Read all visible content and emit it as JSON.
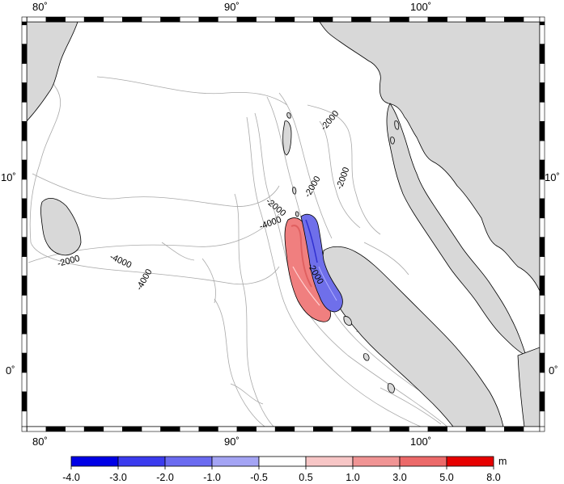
{
  "axes": {
    "lon_labels": [
      "80˚",
      "90˚",
      "100˚"
    ],
    "lat_labels": [
      "10˚",
      "0˚"
    ]
  },
  "contour_labels": [
    "-2000",
    "-4000",
    "-4000",
    "-2000",
    "-4000",
    "-2000",
    "-2000",
    "-2000",
    "-2000"
  ],
  "colorbar": {
    "unit": "m",
    "ticks": [
      "-4.0",
      "-3.0",
      "-2.0",
      "-1.0",
      "-0.5",
      "0.5",
      "1.0",
      "3.0",
      "5.0",
      "8.0"
    ],
    "colors": [
      "#0000e6",
      "#3b3bee",
      "#6b6bf0",
      "#a4a4f4",
      "#ffffff",
      "#f7c6c6",
      "#f09494",
      "#ec6a6a",
      "#e60000"
    ]
  },
  "map_colors": {
    "land": "#d8d8d8",
    "coast": "#000000",
    "bathymetry": "#a9a9a9",
    "uplift": "#f07f7f",
    "subsidence": "#6f6fea"
  }
}
